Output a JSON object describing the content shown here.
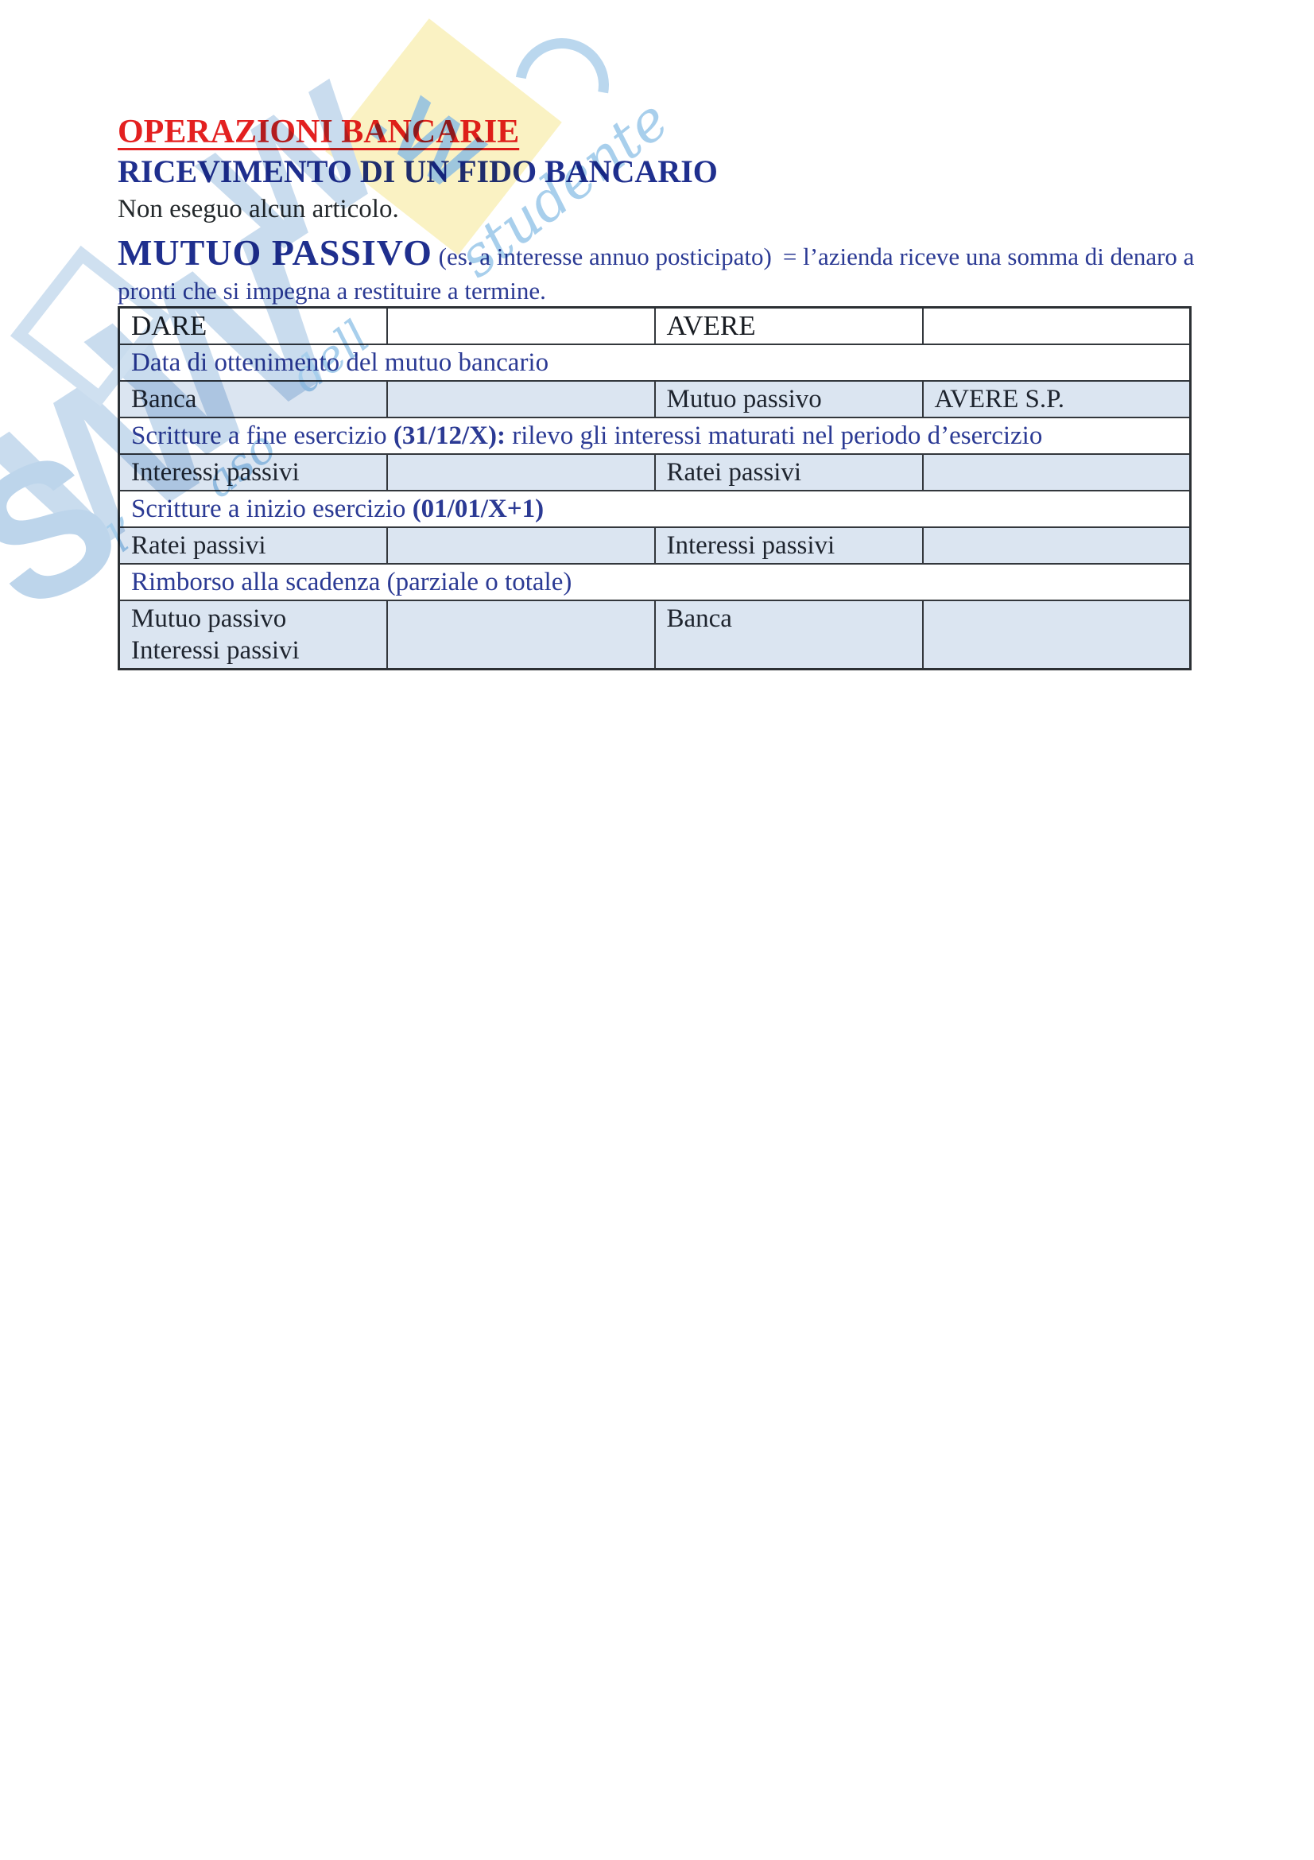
{
  "page": {
    "title": "OPERAZIONI BANCARIE",
    "subtitle": "RICEVIMENTO DI UN FIDO BANCARIO",
    "note": "Non eseguo alcun articolo.",
    "mutuo_heading": "MUTUO PASSIVO",
    "mutuo_paren": "(es. a interesse annuo posticipato)",
    "mutuo_rest_line1": "= l’azienda riceve una somma di denaro a",
    "mutuo_rest_line2": "pronti che si impegna a restituire a termine."
  },
  "table": {
    "rows": [
      {
        "kind": "header",
        "height": 42,
        "shaded": false,
        "cells": [
          [
            "DARE"
          ],
          [
            ""
          ],
          [
            "AVERE"
          ],
          [
            ""
          ]
        ]
      },
      {
        "kind": "section",
        "height": 40,
        "segments": [
          {
            "text": "Data di ottenimento del mutuo bancario",
            "bold": false
          }
        ]
      },
      {
        "kind": "entry",
        "height": 41,
        "shaded": true,
        "cells": [
          [
            "Banca"
          ],
          [
            ""
          ],
          [
            "Mutuo passivo"
          ],
          [
            "AVERE S.P."
          ]
        ]
      },
      {
        "kind": "section",
        "height": 43,
        "segments": [
          {
            "text": "Scritture a fine esercizio ",
            "bold": false
          },
          {
            "text": "(31/12/X):",
            "bold": true
          },
          {
            "text": " rilevo gli interessi maturati nel periodo d’esercizio",
            "bold": false
          }
        ]
      },
      {
        "kind": "entry",
        "height": 41,
        "shaded": true,
        "cells": [
          [
            "Interessi passivi"
          ],
          [
            ""
          ],
          [
            "Ratei passivi"
          ],
          [
            ""
          ]
        ]
      },
      {
        "kind": "section",
        "height": 41,
        "segments": [
          {
            "text": "Scritture a inizio esercizio ",
            "bold": false
          },
          {
            "text": "(01/01/X+1)",
            "bold": true
          }
        ]
      },
      {
        "kind": "entry",
        "height": 40,
        "shaded": true,
        "cells": [
          [
            "Ratei passivi"
          ],
          [
            ""
          ],
          [
            "Interessi passivi"
          ],
          [
            ""
          ]
        ]
      },
      {
        "kind": "section",
        "height": 42,
        "segments": [
          {
            "text": "Rimborso alla scadenza (parziale o totale)",
            "bold": false
          }
        ]
      },
      {
        "kind": "entry",
        "height": 82,
        "shaded": true,
        "valign": "top",
        "cells": [
          [
            "Mutuo passivo",
            "Interessi passivi"
          ],
          [
            ""
          ],
          [
            "Banca"
          ],
          [
            ""
          ]
        ]
      }
    ]
  },
  "watermark": {
    "note_glyph": ".W",
    "letters": [
      "W",
      "W",
      "W",
      "S"
    ],
    "script_fragments": [
      "studente",
      "dell",
      "aso",
      "l’"
    ]
  },
  "colors": {
    "title_red": "#e32020",
    "heading_blue": "#1f2f8e",
    "body_blue": "#2b3a94",
    "text_dark": "#1e242e",
    "cell_shade": "#dbe5f1",
    "table_border": "#33373c",
    "watermark_yellow": "#faf2c3",
    "watermark_blue": "#c9dcee"
  }
}
